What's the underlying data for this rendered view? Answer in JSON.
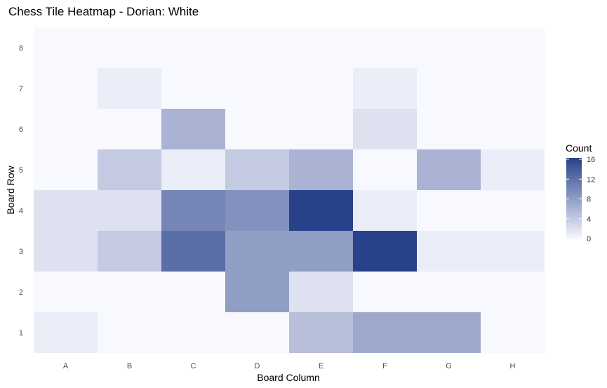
{
  "chart_data": {
    "type": "heatmap",
    "title": "Chess Tile Heatmap - Dorian: White",
    "xlabel": "Board Column",
    "ylabel": "Board Row",
    "x_categories": [
      "A",
      "B",
      "C",
      "D",
      "E",
      "F",
      "G",
      "H"
    ],
    "y_categories": [
      "1",
      "2",
      "3",
      "4",
      "5",
      "6",
      "7",
      "8"
    ],
    "matrix_rows_bottom_to_top": [
      [
        1,
        0,
        0,
        0,
        5,
        7,
        7,
        0
      ],
      [
        0,
        0,
        0,
        8,
        2,
        0,
        0,
        0
      ],
      [
        2,
        4,
        12,
        8,
        8,
        16,
        1,
        1
      ],
      [
        2,
        2,
        10,
        9,
        16,
        1,
        0,
        0
      ],
      [
        0,
        4,
        1,
        4,
        6,
        0,
        6,
        1
      ],
      [
        0,
        0,
        6,
        0,
        0,
        2,
        0,
        0
      ],
      [
        0,
        1,
        0,
        0,
        0,
        1,
        0,
        0
      ],
      [
        0,
        0,
        0,
        0,
        0,
        0,
        0,
        0
      ]
    ],
    "legend": {
      "title": "Count",
      "ticks": [
        "0",
        "4",
        "8",
        "12",
        "16"
      ],
      "min": 0,
      "max": 16,
      "placement": "right"
    },
    "colors": {
      "low": "#f8f8ff",
      "high": "#27418a"
    },
    "grid": true
  }
}
